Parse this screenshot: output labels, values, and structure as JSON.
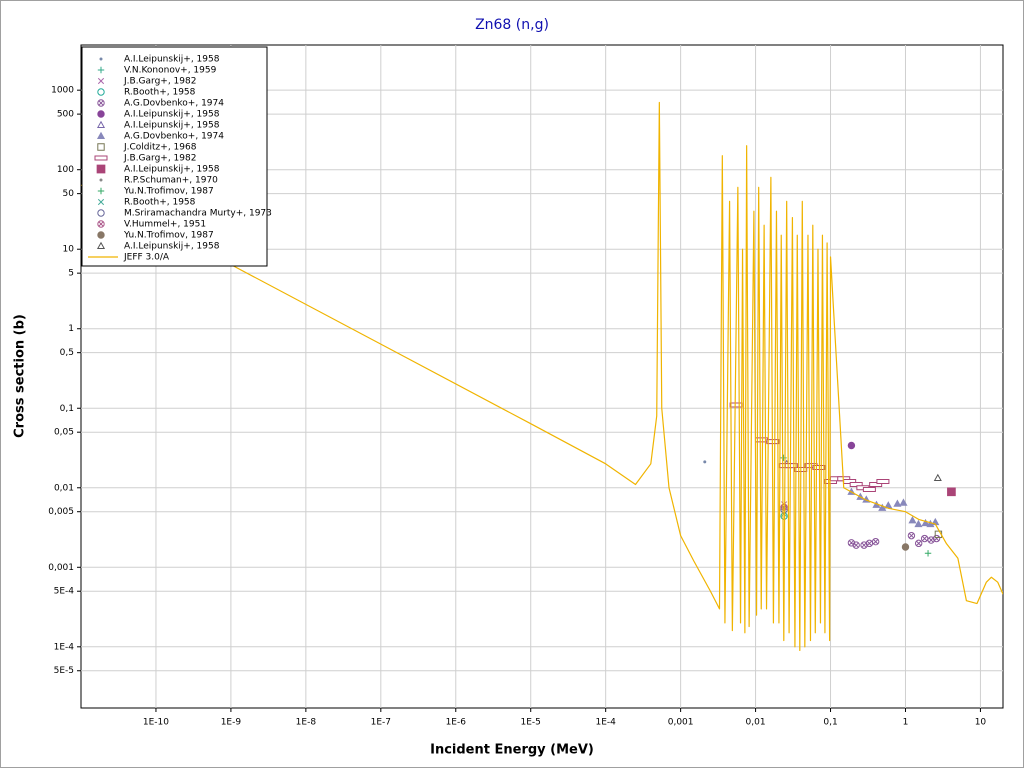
{
  "chart_data": {
    "type": "scatter",
    "title": "Zn68 (n,g)",
    "x_label": "Incident Energy (MeV)",
    "y_label": "Cross section (b)",
    "xscale": "log",
    "yscale": "log",
    "grid": true,
    "legend": "upper left",
    "xlim": [
      1e-11,
      20
    ],
    "ylim": [
      1.7e-05,
      3700
    ],
    "xticks": [
      {
        "value": 1e-10,
        "label": "1E-10"
      },
      {
        "value": 1e-09,
        "label": "1E-9"
      },
      {
        "value": 1e-08,
        "label": "1E-8"
      },
      {
        "value": 1e-07,
        "label": "1E-7"
      },
      {
        "value": 1e-06,
        "label": "1E-6"
      },
      {
        "value": 1e-05,
        "label": "1E-5"
      },
      {
        "value": 0.0001,
        "label": "1E-4"
      },
      {
        "value": 0.001,
        "label": "0,001"
      },
      {
        "value": 0.01,
        "label": "0,01"
      },
      {
        "value": 0.1,
        "label": "0,1"
      },
      1,
      10
    ],
    "yticks": [
      1000,
      500,
      100,
      50,
      10,
      5,
      1,
      {
        "value": 0.5,
        "label": "0,5"
      },
      {
        "value": 0.1,
        "label": "0,1"
      },
      {
        "value": 0.05,
        "label": "0,05"
      },
      {
        "value": 0.01,
        "label": "0,01"
      },
      {
        "value": 0.005,
        "label": "0,005"
      },
      {
        "value": 0.001,
        "label": "0,001"
      },
      {
        "value": 0.0005,
        "label": "5E-4"
      },
      {
        "value": 0.0001,
        "label": "1E-4"
      },
      {
        "value": 5e-05,
        "label": "5E-5"
      }
    ],
    "series": [
      {
        "name": "A.I.Leipunskij+, 1958",
        "mode": "markers",
        "marker": "dot",
        "color": "#7788aa",
        "x": [
          0.0021
        ],
        "values": [
          0.0212
        ]
      },
      {
        "name": "V.N.Kononov+, 1959",
        "mode": "markers",
        "marker": "plus",
        "color": "#33aa88",
        "x": [
          0.0236
        ],
        "values": [
          0.0238
        ]
      },
      {
        "name": "J.B.Garg+, 1982",
        "mode": "markers",
        "marker": "x",
        "color": "#aa66aa",
        "x": [
          0.024
        ],
        "values": [
          0.0062
        ]
      },
      {
        "name": "R.Booth+, 1958",
        "mode": "markers",
        "marker": "circle",
        "color": "#22aa99",
        "x": [
          0.024
        ],
        "values": [
          0.0044
        ]
      },
      {
        "name": "A.G.Dovbenko+, 1974",
        "mode": "markers",
        "marker": "circle-x",
        "color": "#885599",
        "x": [
          0.19,
          0.22,
          0.28,
          0.33,
          0.4,
          1.2,
          1.5,
          1.8,
          2.2,
          2.6
        ],
        "values": [
          0.00203,
          0.0019,
          0.0019,
          0.002,
          0.0021,
          0.0025,
          0.002,
          0.0023,
          0.0022,
          0.0023
        ]
      },
      {
        "name": "A.I.Leipunskij+, 1958",
        "mode": "markers",
        "marker": "filled-circle",
        "color": "#884499",
        "x": [
          0.19
        ],
        "values": [
          0.034
        ]
      },
      {
        "name": "A.I.Leipunskij+, 1958",
        "mode": "markers",
        "marker": "triangle",
        "color": "#7766aa",
        "x": [
          0.026
        ],
        "values": [
          0.02
        ]
      },
      {
        "name": "A.G.Dovbenko+, 1974",
        "mode": "markers",
        "marker": "filled-triangle",
        "color": "#8888bb",
        "x": [
          0.19,
          0.25,
          0.3,
          0.41,
          0.49,
          0.59,
          0.78,
          0.94,
          1.24,
          1.49,
          1.85,
          2.15,
          2.5
        ],
        "values": [
          0.0089,
          0.0077,
          0.0071,
          0.0061,
          0.0056,
          0.006,
          0.0063,
          0.0065,
          0.0039,
          0.0035,
          0.0036,
          0.0035,
          0.0037
        ]
      },
      {
        "name": "J.Colditz+, 1968",
        "mode": "markers",
        "marker": "square",
        "color": "#777755",
        "x": [
          2.75
        ],
        "values": [
          0.0026
        ]
      },
      {
        "name": "J.B.Garg+, 1982",
        "mode": "markers",
        "marker": "box",
        "color": "#aa4477",
        "x": [
          0.0055,
          0.012,
          0.017,
          0.025,
          0.03,
          0.04,
          0.055,
          0.07,
          0.1,
          0.12,
          0.15,
          0.18,
          0.22,
          0.27,
          0.33,
          0.4,
          0.5
        ],
        "values": [
          0.11,
          0.04,
          0.038,
          0.019,
          0.019,
          0.017,
          0.019,
          0.018,
          0.012,
          0.013,
          0.013,
          0.012,
          0.011,
          0.01,
          0.0095,
          0.011,
          0.012
        ]
      },
      {
        "name": "A.I.Leipunskij+, 1958",
        "mode": "markers",
        "marker": "filled-square",
        "color": "#aa4477",
        "x": [
          4.1
        ],
        "values": [
          0.0089
        ]
      },
      {
        "name": "R.P.Schuman+, 1970",
        "mode": "markers",
        "marker": "dot",
        "color": "#888888",
        "x": [
          0.024
        ],
        "values": [
          0.0055
        ]
      },
      {
        "name": "Yu.N.Trofimov, 1987",
        "mode": "markers",
        "marker": "plus",
        "color": "#33aa66",
        "x": [
          2.0
        ],
        "values": [
          0.0015
        ]
      },
      {
        "name": "R.Booth+, 1958",
        "mode": "markers",
        "marker": "x",
        "color": "#44aa99",
        "x": [
          0.024
        ],
        "values": [
          0.0047
        ]
      },
      {
        "name": "M.Sriramachandra Murty+, 1973",
        "mode": "markers",
        "marker": "circle",
        "color": "#666699",
        "x": [
          0.024
        ],
        "values": [
          0.0053
        ]
      },
      {
        "name": "V.Hummel+, 1951",
        "mode": "markers",
        "marker": "circle-x",
        "color": "#aa5588",
        "x": [
          0.024
        ],
        "values": [
          0.0057
        ]
      },
      {
        "name": "Yu.N.Trofimov, 1987",
        "mode": "markers",
        "marker": "filled-circle",
        "color": "#887766",
        "x": [
          1.0
        ],
        "values": [
          0.0018
        ]
      },
      {
        "name": "A.I.Leipunskij+, 1958",
        "mode": "markers",
        "marker": "triangle",
        "color": "#555555",
        "x": [
          2.7
        ],
        "values": [
          0.0133
        ]
      },
      {
        "name": "JEFF 3.0/A",
        "mode": "lines",
        "color": "#f0b400",
        "x": [
          1e-11,
          1e-09,
          1e-07,
          1e-05,
          0.0001,
          0.00025,
          0.0004,
          0.00048,
          0.00052,
          0.00056,
          0.0007,
          0.001,
          0.0015,
          0.0025,
          0.0033,
          0.0036,
          0.0039,
          0.0045,
          0.0049,
          0.0058,
          0.0063,
          0.0067,
          0.0072,
          0.0076,
          0.0082,
          0.0095,
          0.0103,
          0.011,
          0.0119,
          0.013,
          0.014,
          0.016,
          0.0173,
          0.019,
          0.0205,
          0.022,
          0.0238,
          0.026,
          0.028,
          0.031,
          0.0335,
          0.036,
          0.0389,
          0.042,
          0.0454,
          0.05,
          0.054,
          0.058,
          0.0626,
          0.068,
          0.0734,
          0.078,
          0.0842,
          0.09,
          0.0972,
          0.1,
          0.15,
          0.3,
          0.6,
          1,
          1.5,
          2.5,
          3.5,
          5,
          6.5,
          9,
          12,
          14,
          17,
          20
        ],
        "values": [
          64,
          6.4,
          0.64,
          0.064,
          0.02,
          0.011,
          0.02,
          0.08,
          700,
          0.1,
          0.01,
          0.0025,
          0.0012,
          0.0005,
          0.0003,
          150,
          0.0002,
          40,
          0.00016,
          60,
          0.0002,
          10,
          0.00015,
          200,
          0.00018,
          30,
          0.00025,
          60,
          0.0003,
          20,
          0.0003,
          80,
          0.0002,
          30,
          0.0002,
          15,
          0.00012,
          40,
          0.00015,
          25,
          0.0001,
          15,
          9e-05,
          40,
          0.0001,
          15,
          0.00012,
          20,
          0.00015,
          10,
          0.0002,
          15,
          0.00015,
          12,
          0.00012,
          8,
          0.01,
          0.007,
          0.0055,
          0.005,
          0.004,
          0.0035,
          0.002,
          0.0013,
          0.00038,
          0.00035,
          0.00065,
          0.00075,
          0.00065,
          0.00046
        ]
      }
    ]
  }
}
